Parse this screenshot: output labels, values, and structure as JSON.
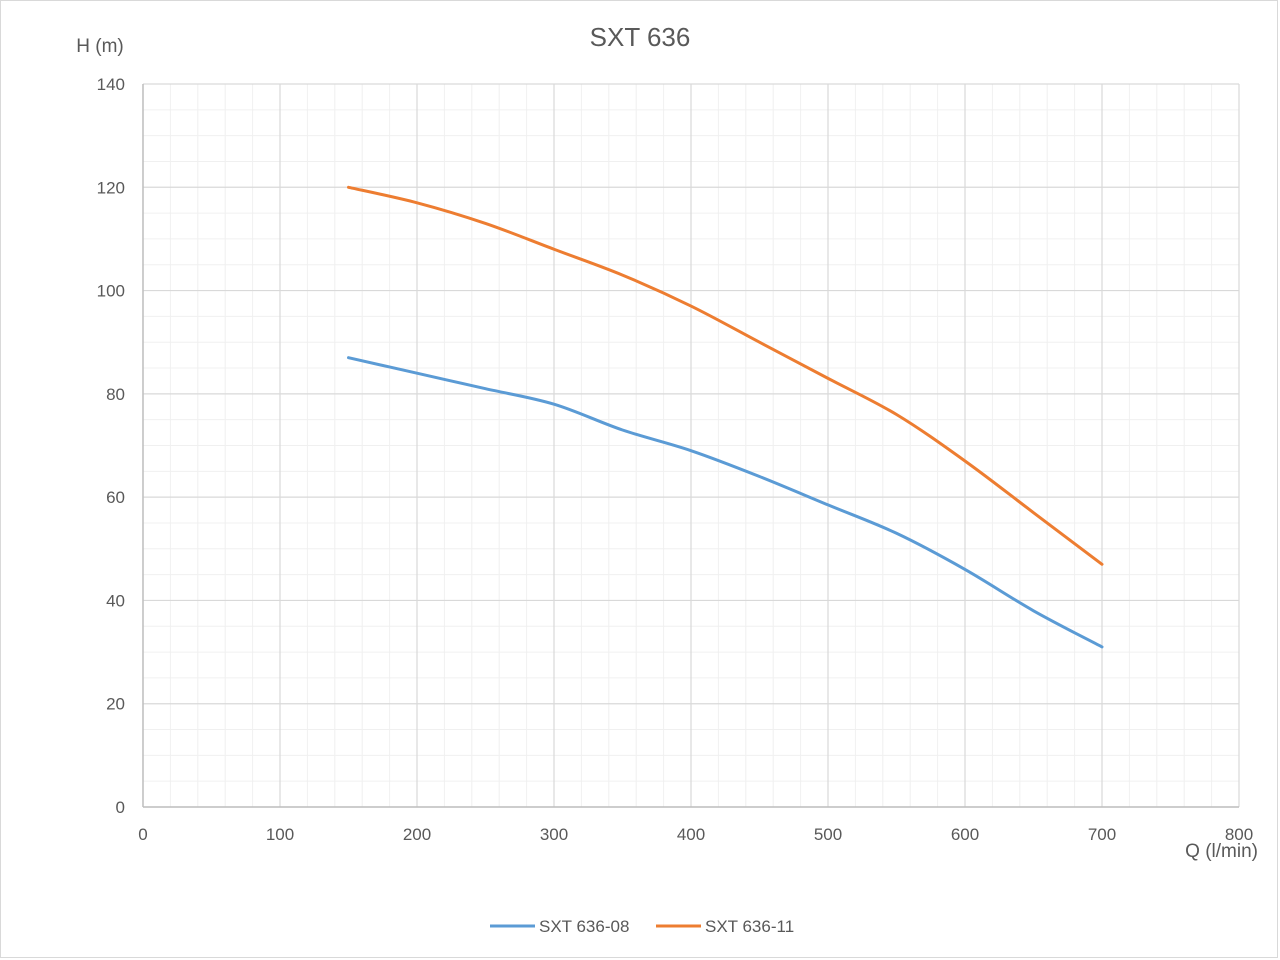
{
  "chart_data": {
    "type": "line",
    "title": "SXT 636",
    "xlabel": "Q (l/min)",
    "ylabel": "H (m)",
    "xlim": [
      0,
      800
    ],
    "ylim": [
      0,
      140
    ],
    "x_ticks": [
      0,
      100,
      200,
      300,
      400,
      500,
      600,
      700,
      800
    ],
    "y_ticks": [
      0,
      20,
      40,
      60,
      80,
      100,
      120,
      140
    ],
    "x_tick_labels": [
      "0",
      "100",
      "200",
      "300",
      "400",
      "500",
      "600",
      "700",
      "800"
    ],
    "y_tick_labels": [
      "0",
      "20",
      "40",
      "60",
      "80",
      "100",
      "120",
      "140"
    ],
    "grid": true,
    "legend_position": "bottom",
    "series": [
      {
        "name": "SXT 636-08",
        "color": "#5b9bd5",
        "x": [
          150,
          200,
          250,
          300,
          350,
          400,
          450,
          500,
          550,
          600,
          650,
          700
        ],
        "y": [
          87,
          84,
          81,
          78,
          73,
          69,
          64,
          58.5,
          53,
          46,
          38,
          31
        ]
      },
      {
        "name": "SXT 636-11",
        "color": "#ed7d31",
        "x": [
          150,
          200,
          250,
          300,
          350,
          400,
          450,
          500,
          550,
          600,
          650,
          700
        ],
        "y": [
          120,
          117,
          113,
          108,
          103,
          97,
          90,
          83,
          76,
          67,
          57,
          47
        ]
      }
    ],
    "colors": {
      "major_grid": "#d9d9d9",
      "minor_grid": "#f0f0f0",
      "axis": "#bfbfbf",
      "text": "#595959"
    }
  }
}
